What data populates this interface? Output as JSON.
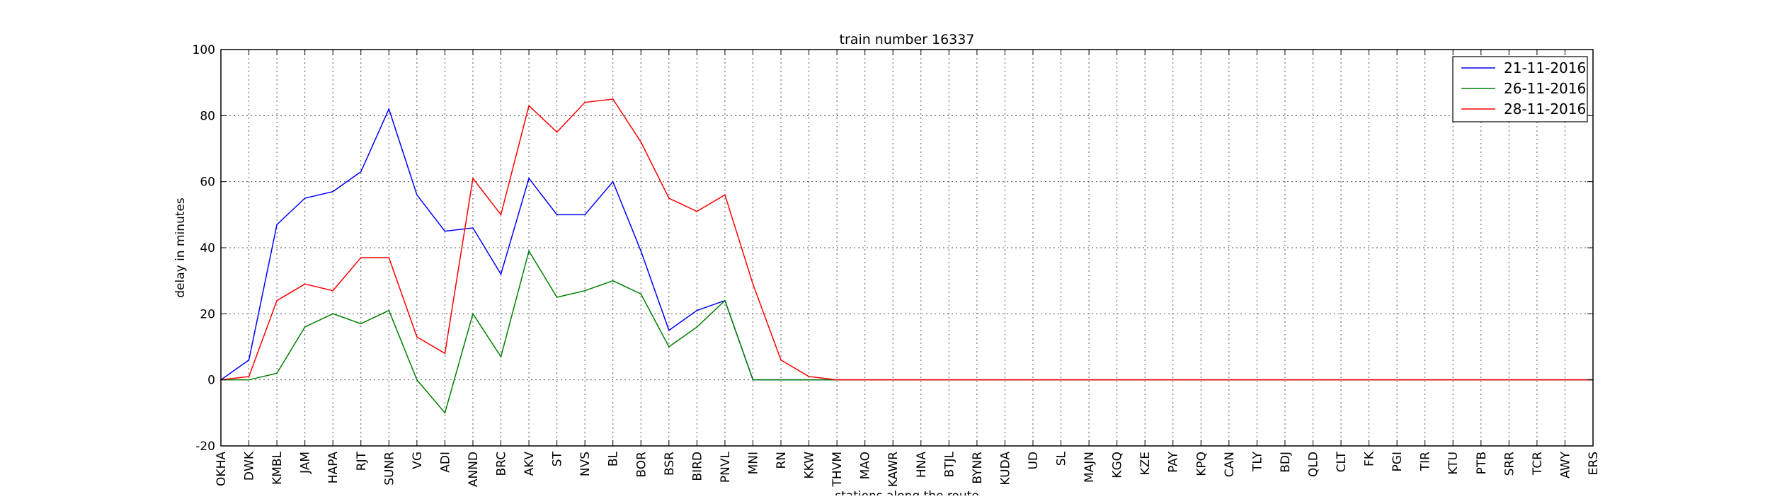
{
  "chart_data": {
    "type": "line",
    "title": "train number 16337",
    "xlabel": "stations along the route",
    "ylabel": "delay in minutes",
    "ylim": [
      -20,
      100
    ],
    "yticks": [
      -20,
      0,
      20,
      40,
      60,
      80,
      100
    ],
    "grid": true,
    "legend_position": "top-right",
    "categories": [
      "OKHA",
      "DWK",
      "KMBL",
      "JAM",
      "HAPA",
      "RJT",
      "SUNR",
      "VG",
      "ADI",
      "ANND",
      "BRC",
      "AKV",
      "ST",
      "NVS",
      "BL",
      "BOR",
      "BSR",
      "BIRD",
      "PNVL",
      "MNI",
      "RN",
      "KKW",
      "THVM",
      "MAO",
      "KAWR",
      "HNA",
      "BTJL",
      "BYNR",
      "KUDA",
      "UD",
      "SL",
      "MAJN",
      "KGQ",
      "KZE",
      "PAY",
      "KPQ",
      "CAN",
      "TLY",
      "BDJ",
      "QLD",
      "CLT",
      "FK",
      "PGI",
      "TIR",
      "KTU",
      "PTB",
      "SRR",
      "TCR",
      "AWY",
      "ERS"
    ],
    "series": [
      {
        "name": "21-11-2016",
        "color": "#0000ff",
        "values": [
          0,
          6,
          47,
          55,
          57,
          63,
          82,
          56,
          45,
          46,
          32,
          61,
          50,
          50,
          60,
          39,
          15,
          21,
          24,
          0,
          0,
          0,
          0,
          0,
          0,
          0,
          0,
          0,
          0,
          0,
          0,
          0,
          0,
          0,
          0,
          0,
          0,
          0,
          0,
          0,
          0,
          0,
          0,
          0,
          0,
          0,
          0,
          0,
          0,
          0
        ]
      },
      {
        "name": "26-11-2016",
        "color": "#008000",
        "values": [
          0,
          0,
          2,
          16,
          20,
          17,
          21,
          0,
          -10,
          20,
          7,
          39,
          25,
          27,
          30,
          26,
          10,
          16,
          24,
          0,
          0,
          0,
          0,
          0,
          0,
          0,
          0,
          0,
          0,
          0,
          0,
          0,
          0,
          0,
          0,
          0,
          0,
          0,
          0,
          0,
          0,
          0,
          0,
          0,
          0,
          0,
          0,
          0,
          0,
          0
        ]
      },
      {
        "name": "28-11-2016",
        "color": "#ff0000",
        "values": [
          0,
          1,
          24,
          29,
          27,
          37,
          37,
          13,
          8,
          61,
          50,
          83,
          75,
          84,
          85,
          72,
          55,
          51,
          56,
          29,
          6,
          1,
          0,
          0,
          0,
          0,
          0,
          0,
          0,
          0,
          0,
          0,
          0,
          0,
          0,
          0,
          0,
          0,
          0,
          0,
          0,
          0,
          0,
          0,
          0,
          0,
          0,
          0,
          0,
          0
        ]
      }
    ]
  }
}
